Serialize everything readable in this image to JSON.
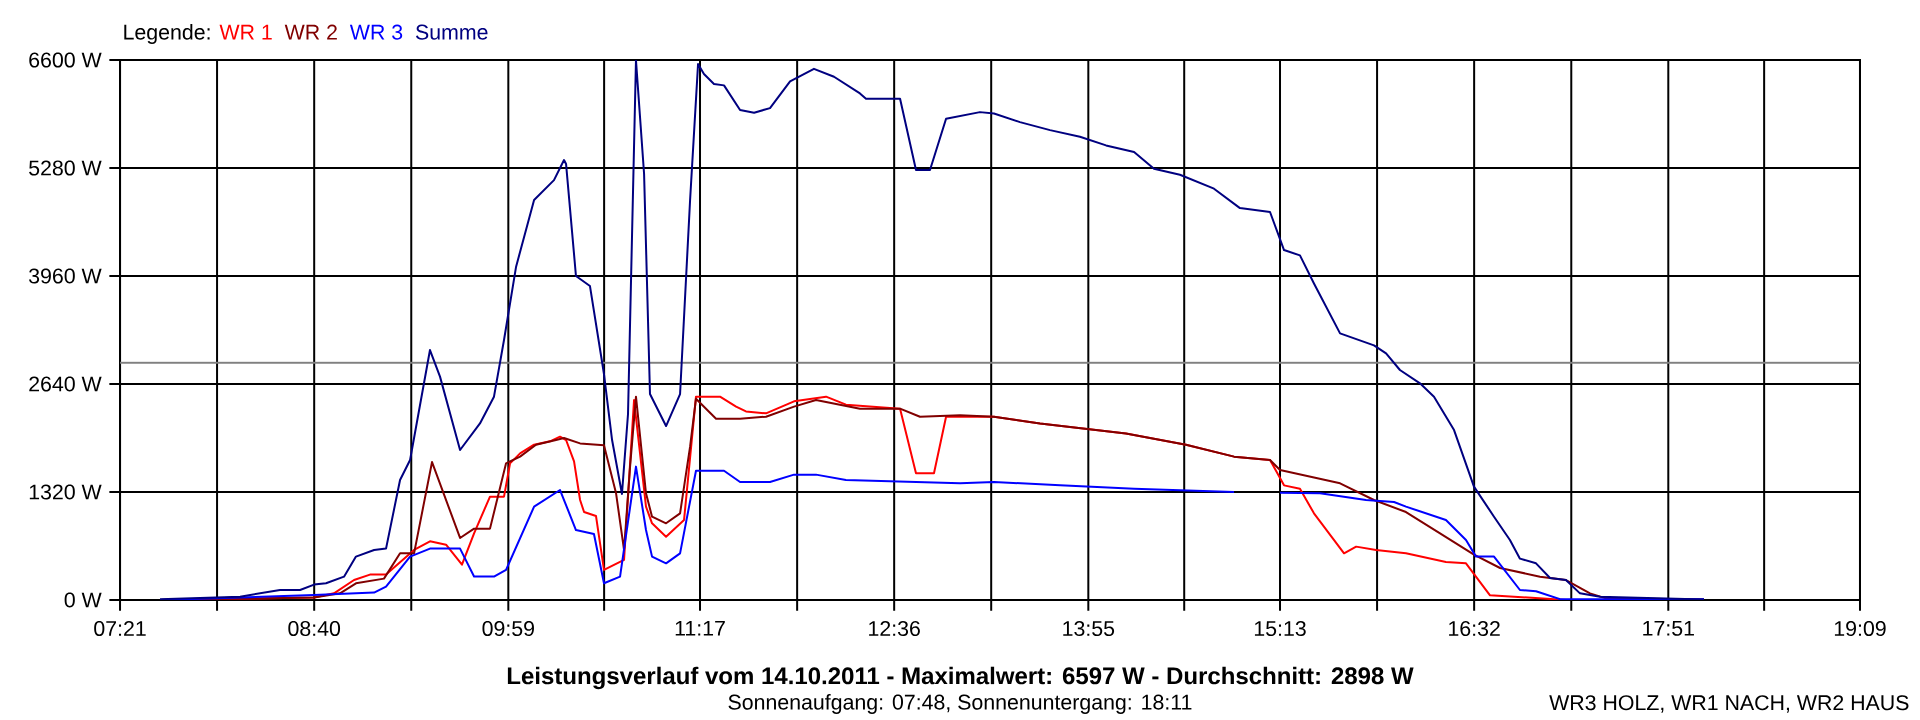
{
  "chart_data": {
    "type": "line",
    "title": "Leistungsverlauf vom 14.10.2011 - Maximalwert: 6597 W - Durchschnitt: 2898 W",
    "subtitle": "Sonnenaufgang: 07:48, Sonnenuntergang: 18:11",
    "annotations": [
      "WR3 HOLZ, WR1 NACH, WR2 HAUS"
    ],
    "legend_title": "Legende:",
    "grid": true,
    "xlim": [
      7.35,
      19.15
    ],
    "xticks": [
      {
        "value": 7.35,
        "label": "07:21"
      },
      {
        "value": 8.008,
        "label": null
      },
      {
        "value": 8.6667,
        "label": "08:40"
      },
      {
        "value": 9.325,
        "label": null
      },
      {
        "value": 9.9833,
        "label": "09:59"
      },
      {
        "value": 10.633,
        "label": null
      },
      {
        "value": 11.2833,
        "label": "11:17"
      },
      {
        "value": 11.942,
        "label": null
      },
      {
        "value": 12.6,
        "label": "12:36"
      },
      {
        "value": 13.258,
        "label": null
      },
      {
        "value": 13.9167,
        "label": "13:55"
      },
      {
        "value": 14.567,
        "label": null
      },
      {
        "value": 15.2167,
        "label": "15:13"
      },
      {
        "value": 15.875,
        "label": null
      },
      {
        "value": 16.5333,
        "label": "16:32"
      },
      {
        "value": 17.192,
        "label": null
      },
      {
        "value": 17.85,
        "label": "17:51"
      },
      {
        "value": 18.5,
        "label": null
      },
      {
        "value": 19.15,
        "label": "19:09"
      }
    ],
    "ylim": [
      0,
      6600
    ],
    "yticks": [
      {
        "value": 0,
        "label": "0 W"
      },
      {
        "value": 1320,
        "label": "1320 W"
      },
      {
        "value": 2640,
        "label": "2640 W"
      },
      {
        "value": 3960,
        "label": "3960 W"
      },
      {
        "value": 5280,
        "label": "5280 W"
      },
      {
        "value": 6600,
        "label": "6600 W"
      }
    ],
    "ref_lines": [
      {
        "axis": "y",
        "value": 2898,
        "color": "#808080"
      }
    ],
    "series": [
      {
        "name": "WR 1",
        "color": "#ff0000",
        "x": [
          7.621,
          8.666,
          8.801,
          8.937,
          9.045,
          9.154,
          9.344,
          9.452,
          9.561,
          9.669,
          9.751,
          9.859,
          9.954,
          9.995,
          10.063,
          10.158,
          10.266,
          10.334,
          10.375,
          10.429,
          10.47,
          10.497,
          10.578,
          10.632,
          10.768,
          10.836,
          10.917,
          10.958,
          11.053,
          11.175,
          11.256,
          11.419,
          11.528,
          11.595,
          11.731,
          11.921,
          12.138,
          12.273,
          12.64,
          12.748,
          12.87,
          12.952,
          13.047,
          13.277,
          13.589,
          14.172,
          14.579,
          14.905,
          15.149,
          15.244,
          15.352,
          15.447,
          15.651,
          15.733,
          15.868,
          16.071,
          16.342,
          16.478,
          16.641,
          16.804,
          17.156
        ],
        "values": [
          0,
          30,
          81,
          244,
          310,
          310,
          611,
          717,
          676,
          432,
          815,
          1263,
          1263,
          1670,
          1792,
          1898,
          1939,
          1996,
          1955,
          1694,
          1222,
          1075,
          1026,
          367,
          489,
          2444,
          1141,
          937,
          774,
          978,
          2485,
          2485,
          2363,
          2305,
          2281,
          2428,
          2485,
          2387,
          2338,
          1548,
          1548,
          2240,
          2240,
          2240,
          2158,
          2036,
          1898,
          1752,
          1711,
          1401,
          1360,
          1059,
          570,
          652,
          611,
          570,
          464,
          448,
          57,
          40,
          0
        ]
      },
      {
        "name": "WR 2",
        "color": "#800000",
        "x": [
          7.621,
          8.666,
          8.842,
          8.95,
          9.14,
          9.249,
          9.344,
          9.466,
          9.656,
          9.751,
          9.859,
          9.968,
          10.063,
          10.171,
          10.307,
          10.361,
          10.47,
          10.632,
          10.714,
          10.768,
          10.809,
          10.849,
          10.917,
          10.958,
          11.053,
          11.148,
          11.216,
          11.256,
          11.392,
          11.555,
          11.731,
          11.921,
          12.07,
          12.368,
          12.64,
          12.775,
          13.047,
          13.277,
          13.589,
          14.172,
          14.579,
          14.905,
          15.149,
          15.217,
          15.624,
          15.854,
          16.071,
          16.302,
          16.532,
          16.709,
          16.98,
          17.156,
          17.319,
          17.428,
          18.092
        ],
        "values": [
          0,
          30,
          81,
          204,
          261,
          570,
          570,
          1686,
          758,
          872,
          872,
          1670,
          1752,
          1898,
          1955,
          1980,
          1914,
          1890,
          1303,
          611,
          1630,
          2485,
          1303,
          1018,
          937,
          1059,
          1874,
          2460,
          2216,
          2216,
          2240,
          2363,
          2444,
          2338,
          2338,
          2240,
          2257,
          2240,
          2158,
          2036,
          1898,
          1752,
          1711,
          1589,
          1426,
          1222,
          1075,
          815,
          554,
          391,
          285,
          244,
          81,
          20,
          5
        ]
      },
      {
        "name": "WR 3",
        "color": "#0000ff",
        "x": [
          7.621,
          8.164,
          8.666,
          9.073,
          9.154,
          9.317,
          9.452,
          9.656,
          9.751,
          9.886,
          9.968,
          10.158,
          10.334,
          10.442,
          10.564,
          10.632,
          10.741,
          10.849,
          10.917,
          10.958,
          11.053,
          11.148,
          11.256,
          11.446,
          11.555,
          11.758,
          11.921,
          12.07,
          12.273,
          13.047,
          13.277,
          13.725,
          14.227,
          14.905,
          15.054,
          15.217,
          15.488,
          15.8,
          15.99,
          16.071,
          16.342,
          16.478,
          16.546,
          16.668,
          16.844,
          16.953,
          17.116,
          17.428,
          18.092
        ],
        "values": [
          0,
          30,
          60,
          90,
          163,
          530,
          628,
          628,
          286,
          286,
          367,
          1141,
          1344,
          855,
          806,
          204,
          286,
          1630,
          855,
          530,
          448,
          570,
          1580,
          1580,
          1442,
          1442,
          1532,
          1532,
          1467,
          1426,
          1442,
          1402,
          1361,
          1320,
          null,
          1312,
          1304,
          1222,
          1197,
          1141,
          978,
          733,
          530,
          530,
          122,
          106,
          10,
          10,
          10
        ]
      },
      {
        "name": "Summe",
        "color": "#000080",
        "x": [
          7.621,
          8.164,
          8.435,
          8.571,
          8.666,
          8.747,
          8.869,
          8.95,
          9.073,
          9.154,
          9.249,
          9.317,
          9.452,
          9.52,
          9.656,
          9.791,
          9.886,
          9.954,
          10.036,
          10.158,
          10.293,
          10.361,
          10.375,
          10.442,
          10.537,
          10.632,
          10.687,
          10.754,
          10.795,
          10.849,
          10.904,
          10.944,
          11.053,
          11.148,
          11.216,
          11.27,
          11.31,
          11.378,
          11.446,
          11.555,
          11.65,
          11.758,
          11.894,
          12.056,
          12.192,
          12.368,
          12.409,
          12.64,
          12.748,
          12.843,
          12.952,
          13.182,
          13.277,
          13.453,
          13.657,
          13.86,
          14.037,
          14.227,
          14.362,
          14.538,
          14.769,
          14.945,
          15.149,
          15.244,
          15.352,
          15.447,
          15.624,
          15.854,
          15.936,
          16.03,
          16.166,
          16.261,
          16.397,
          16.532,
          16.668,
          16.776,
          16.844,
          16.953,
          17.048,
          17.156,
          17.251,
          17.387,
          18.092
        ],
        "values": [
          10,
          40,
          122,
          122,
          188,
          204,
          285,
          530,
          611,
          628,
          1466,
          1711,
          3055,
          2730,
          1833,
          2158,
          2485,
          3177,
          4074,
          4888,
          5132,
          5377,
          5328,
          3960,
          3837,
          2762,
          1955,
          1295,
          2273,
          6597,
          5206,
          2517,
          2126,
          2517,
          4888,
          6550,
          6428,
          6306,
          6290,
          5988,
          5956,
          6012,
          6338,
          6492,
          6395,
          6192,
          6127,
          6127,
          5255,
          5255,
          5882,
          5963,
          5947,
          5841,
          5743,
          5662,
          5556,
          5475,
          5271,
          5198,
          5027,
          4790,
          4742,
          4277,
          4212,
          3869,
          3259,
          3112,
          3014,
          2811,
          2648,
          2485,
          2077,
          1385,
          1018,
          733,
          505,
          448,
          269,
          244,
          81,
          40,
          5
        ]
      }
    ]
  }
}
